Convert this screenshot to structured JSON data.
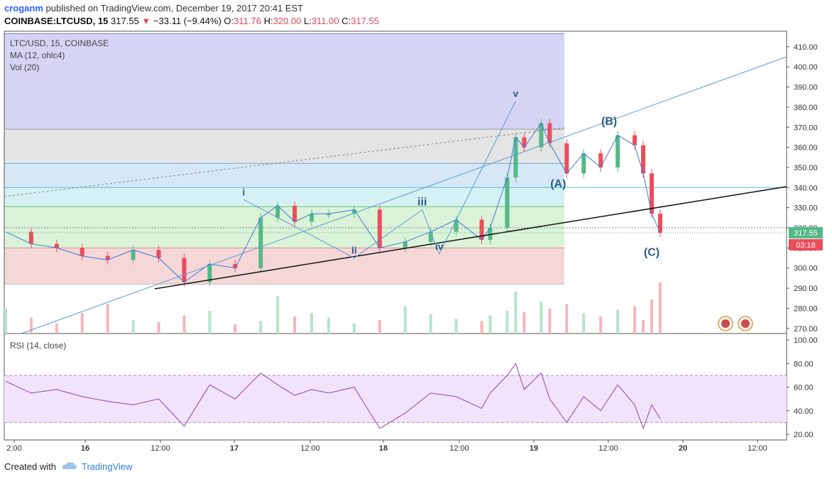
{
  "header": {
    "user": "croganm",
    "published": "published on TradingView.com, December 19, 2017 20:41 EST",
    "symbol": "COINBASE:LTCUSD, 15",
    "last": "317.55",
    "change_arrow": "▼",
    "change": "−33.11 (−9.44%)",
    "o_label": "O:",
    "o": "311.76",
    "h_label": "H:",
    "h": "320.00",
    "l_label": "L:",
    "l": "311.00",
    "c_label": "C:",
    "c": "317.55"
  },
  "legend": {
    "line1": "LTC/USD, 15, COINBASE",
    "line2": "MA (12, ohlc4)",
    "line3": "Vol (20)"
  },
  "rsi_label": "RSI (14, close)",
  "footer": {
    "created": "Created with",
    "brand": "TradingView"
  },
  "colors": {
    "up": "#53b987",
    "down": "#eb4d5c",
    "ma": "#3c78d8",
    "rsi": "#8e44ad",
    "price_badge": "#53b987",
    "timer_badge": "#eb4d5c"
  },
  "chart_data": [
    {
      "type": "line",
      "title": "LTC/USD, 15, COINBASE",
      "y_axis_ticks": [
        270,
        280,
        290,
        300,
        310,
        320,
        330,
        340,
        350,
        360,
        370,
        380,
        390,
        400,
        410
      ],
      "x_axis_ticks": [
        "2:00",
        "16",
        "12:00",
        "17",
        "12:00",
        "18",
        "12:00",
        "19",
        "12:00",
        "20",
        "12:00"
      ],
      "last_price_label": "317.55",
      "countdown_label": "03:18",
      "x": [
        0,
        3,
        6,
        9,
        12,
        15,
        18,
        21,
        24,
        27,
        30,
        32,
        34,
        36,
        38,
        41,
        44,
        47,
        50,
        53,
        56,
        57,
        59,
        60,
        61,
        63,
        64,
        66,
        68,
        70,
        72,
        74,
        75,
        76,
        77
      ],
      "series": [
        {
          "values": [
            318,
            312,
            310,
            306,
            304,
            309,
            305,
            293,
            302,
            300,
            325,
            331,
            323,
            327,
            327,
            329,
            310,
            313,
            318,
            324,
            314,
            320,
            345,
            365,
            360,
            372,
            362,
            347,
            357,
            350,
            366,
            361,
            347,
            327,
            317.55
          ]
        }
      ],
      "wave_labels": [
        {
          "text": "i",
          "x": 28,
          "y": 334
        },
        {
          "text": "ii",
          "x": 41,
          "y": 305
        },
        {
          "text": "iii",
          "x": 49,
          "y": 329
        },
        {
          "text": "iv",
          "x": 51,
          "y": 307
        },
        {
          "text": "v",
          "x": 60,
          "y": 383
        },
        {
          "text": "(A)",
          "x": 65,
          "y": 338
        },
        {
          "text": "(B)",
          "x": 71,
          "y": 369
        },
        {
          "text": "(C)",
          "x": 76,
          "y": 304
        }
      ],
      "fib_levels": [
        416.5,
        369,
        352,
        340,
        330.5,
        320,
        310,
        292
      ],
      "volume": [
        22,
        14,
        9,
        18,
        26,
        12,
        10,
        16,
        20,
        8,
        11,
        33,
        15,
        18,
        14,
        9,
        12,
        24,
        17,
        13,
        11,
        16,
        20,
        37,
        19,
        28,
        22,
        26,
        18,
        15,
        21,
        24,
        12,
        30,
        45
      ]
    },
    {
      "type": "line",
      "title": "RSI (14, close)",
      "y_axis_ticks": [
        20,
        40,
        60,
        80,
        100
      ],
      "bands": [
        30,
        70
      ],
      "x": [
        0,
        3,
        6,
        9,
        12,
        15,
        18,
        21,
        24,
        27,
        30,
        32,
        34,
        36,
        38,
        41,
        44,
        47,
        50,
        53,
        56,
        57,
        59,
        60,
        61,
        63,
        64,
        66,
        68,
        70,
        72,
        74,
        75,
        76,
        77
      ],
      "series": [
        {
          "values": [
            65,
            55,
            58,
            52,
            48,
            45,
            50,
            27,
            62,
            50,
            72,
            62,
            53,
            58,
            55,
            60,
            25,
            38,
            55,
            52,
            42,
            55,
            70,
            80,
            58,
            72,
            50,
            30,
            52,
            40,
            62,
            45,
            25,
            45,
            33
          ]
        }
      ]
    }
  ]
}
